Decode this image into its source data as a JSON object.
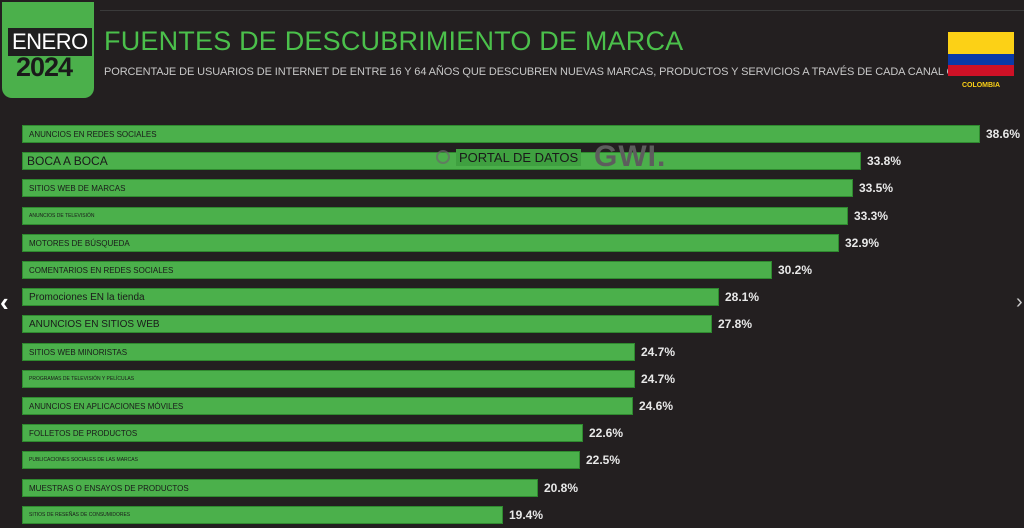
{
  "header": {
    "badge_month": "ENERO",
    "badge_year": "2024",
    "title": "FUENTES DE DESCUBRIMIENTO DE MARCA",
    "subtitle": "PORCENTAJE DE USUARIOS DE INTERNET DE ENTRE 16 Y 64 AÑOS QUE DESCUBREN NUEVAS MARCAS, PRODUCTOS Y SERVICIOS A TRAVÉS DE CADA CANAL O MEDIO",
    "country": "COLOMBIA"
  },
  "overlay": {
    "portal_label": "PORTAL DE DATOS",
    "gwi_logo": "GWI."
  },
  "nav": {
    "prev_icon": "chevron-left-icon",
    "next_icon": "chevron-right-icon"
  },
  "colors": {
    "bar": "#4bb04b",
    "title": "#4bc04b",
    "background": "#231f20",
    "flag_yellow": "#fcd116",
    "flag_blue": "#0a3aa8",
    "flag_red": "#ce1126"
  },
  "chart_data": {
    "type": "bar",
    "orientation": "horizontal",
    "categories": [
      "ANUNCIOS EN REDES SOCIALES",
      "BOCA A BOCA",
      "SITIOS WEB DE MARCAS",
      "ANUNCIOS DE TELEVISIÓN",
      "MOTORES DE BÚSQUEDA",
      "COMENTARIOS EN REDES SOCIALES",
      "Promociones EN la tienda",
      "ANUNCIOS EN SITIOS WEB",
      "SITIOS WEB MINORISTAS",
      "PROGRAMAS DE TELEVISIÓN Y PELÍCULAS",
      "ANUNCIOS EN APLICACIONES MÓVILES",
      "FOLLETOS DE PRODUCTOS",
      "PUBLICACIONES SOCIALES DE LAS MARCAS",
      "MUESTRAS O ENSAYOS DE PRODUCTOS",
      "SITIOS DE RESEÑAS DE CONSUMIDORES"
    ],
    "values": [
      38.6,
      33.8,
      33.5,
      33.3,
      32.9,
      30.2,
      28.1,
      27.8,
      24.7,
      24.7,
      24.6,
      22.6,
      22.5,
      20.8,
      19.4
    ],
    "value_labels": [
      "38.6%",
      "33.8%",
      "33.5%",
      "33.3%",
      "32.9%",
      "30.2%",
      "28.1%",
      "27.8%",
      "24.7%",
      "24.7%",
      "24.6%",
      "22.6%",
      "22.5%",
      "20.8%",
      "19.4%"
    ],
    "label_sizes": [
      "small",
      "big",
      "small",
      "tiny",
      "small",
      "small",
      "mid",
      "mid",
      "small",
      "tiny",
      "small",
      "small",
      "tiny",
      "small",
      "tiny"
    ],
    "title": "FUENTES DE DESCUBRIMIENTO DE MARCA",
    "xlim": [
      0,
      38.6
    ],
    "grid": false,
    "legend": "none"
  }
}
